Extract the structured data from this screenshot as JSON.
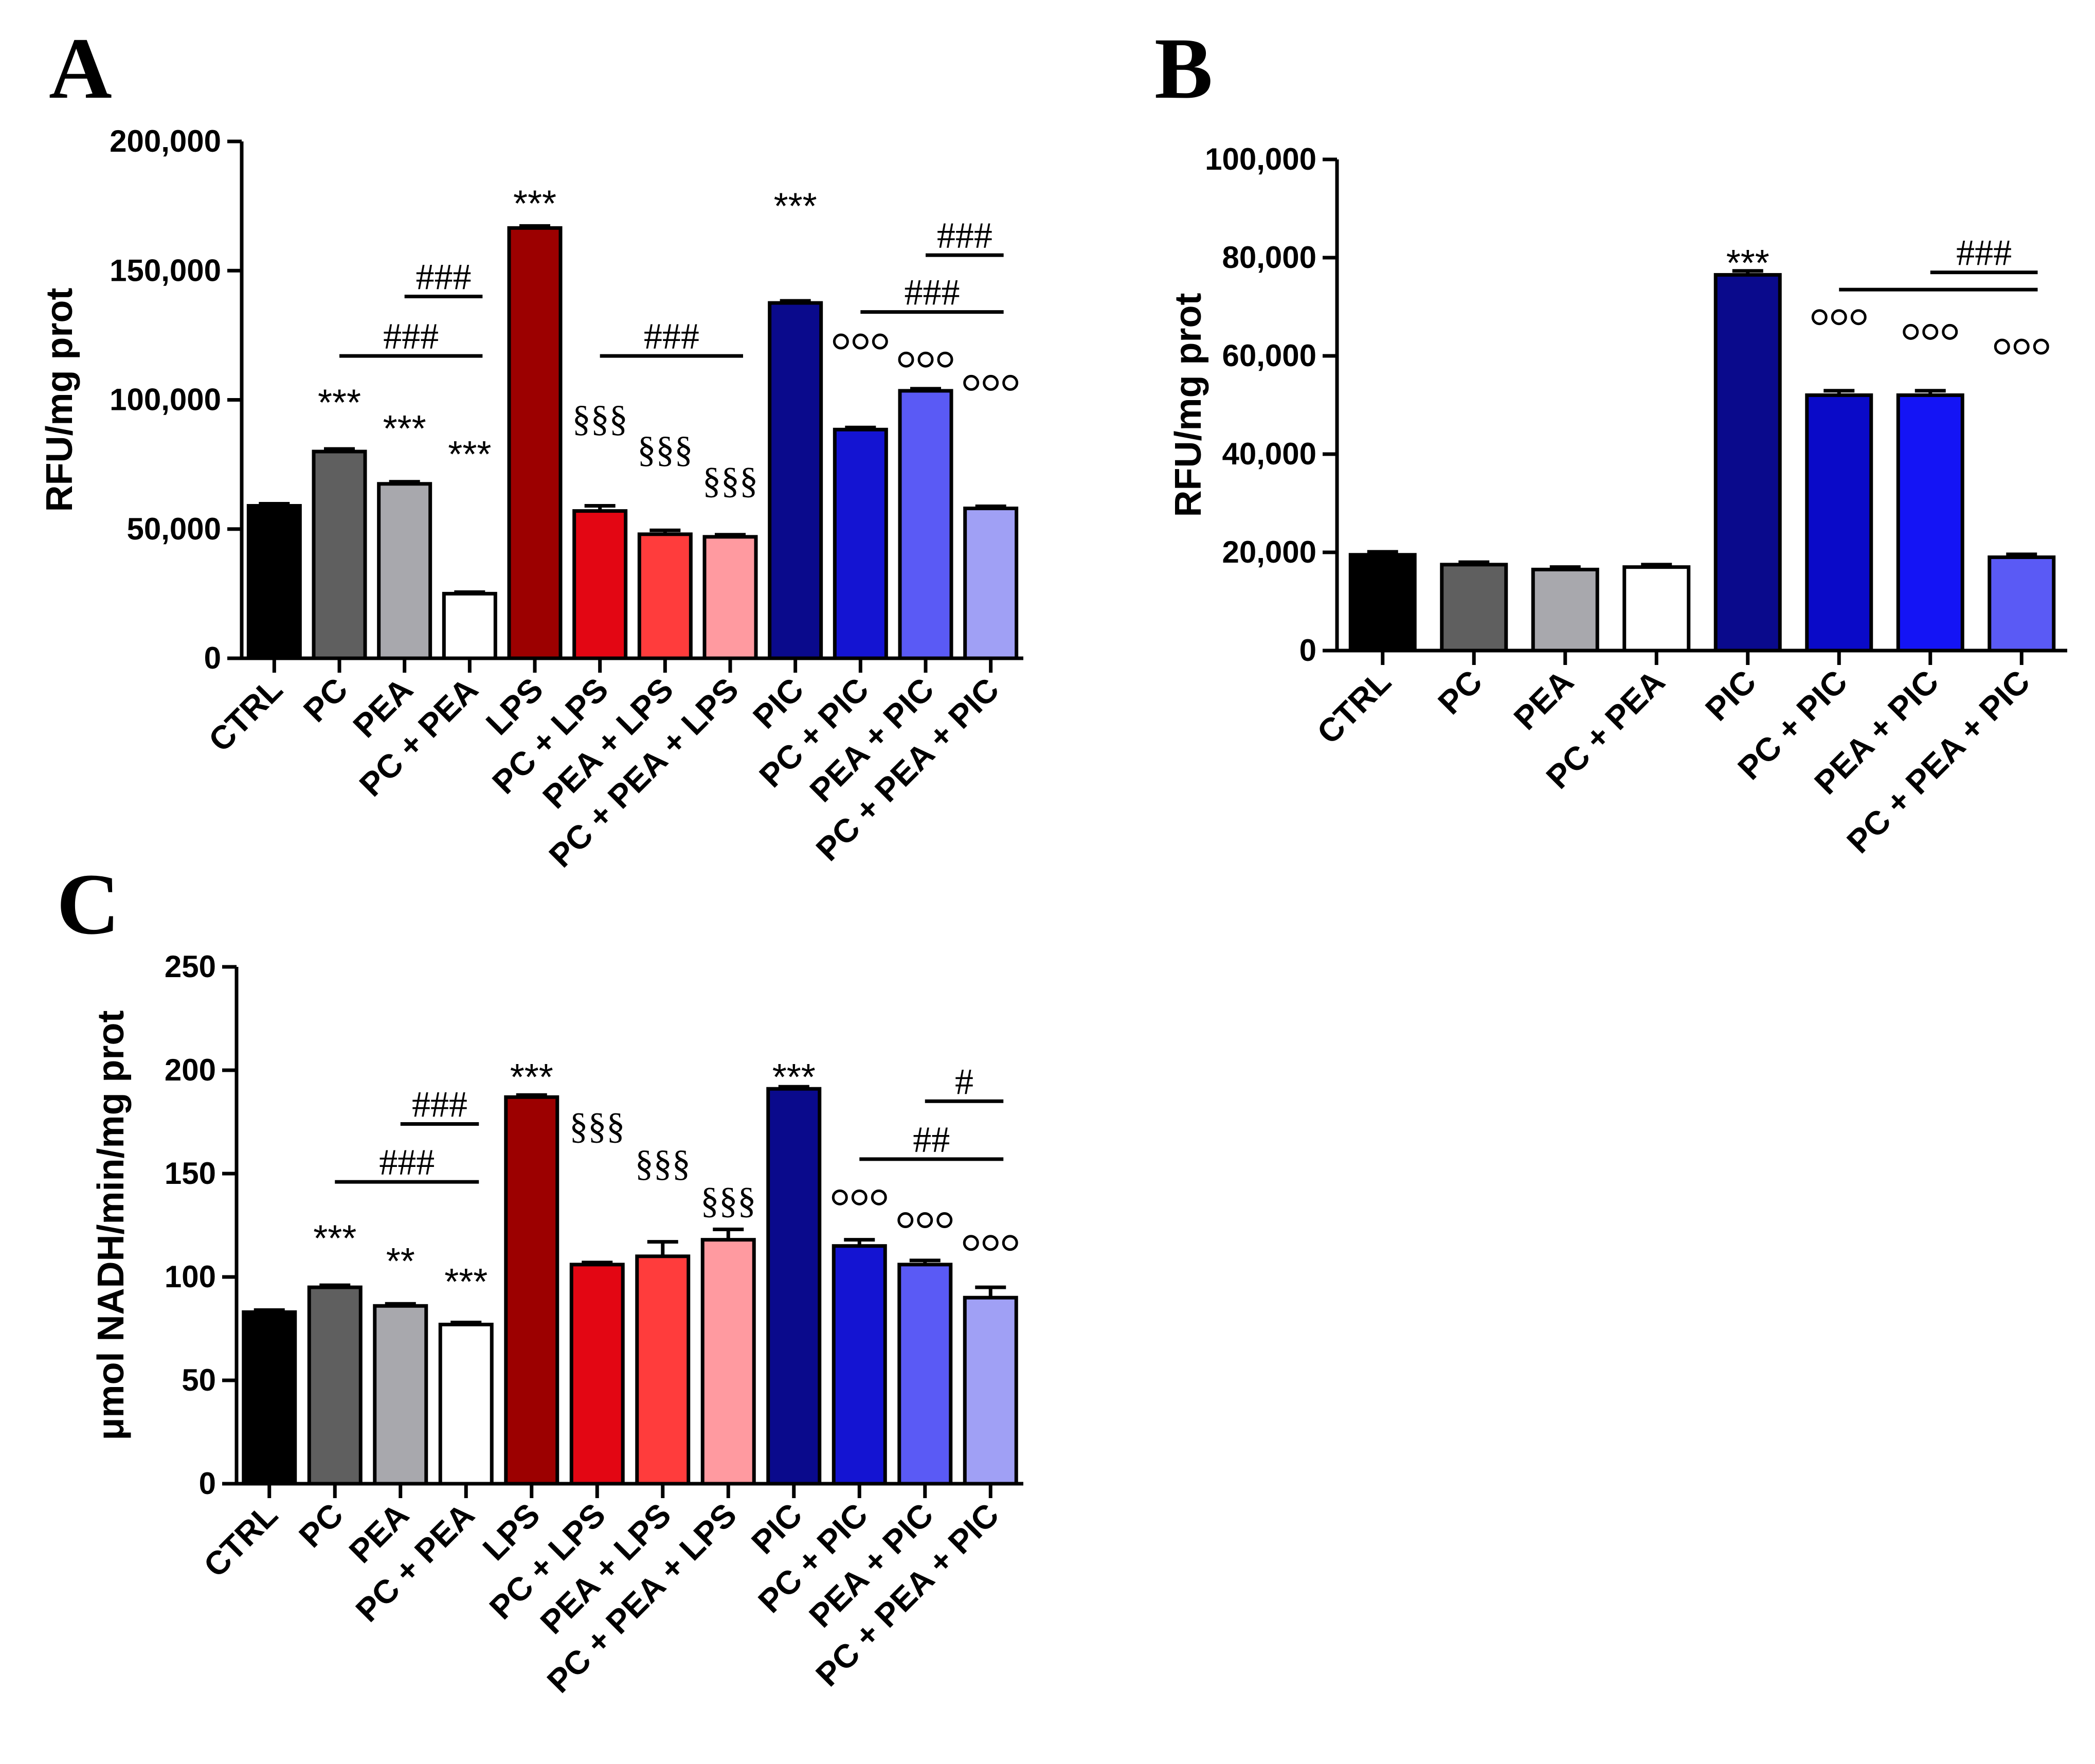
{
  "colors": {
    "CTRL": "#000000",
    "PC": "#5f5f5f",
    "PEA": "#a8a8ad",
    "PC + PEA": "#ffffff",
    "LPS": "#9c0000",
    "PC + LPS": "#e30613",
    "PEA + LPS": "#ff3c3c",
    "PC + PEA + LPS": "#ff9aa0",
    "PIC": "#0a0a8c",
    "PC + PIC": "#1414d2",
    "PEA + PIC": "#5a5af5",
    "PC + PEA + PIC": "#a0a0f5",
    "B_PC + PIC": "#0a0ac8",
    "B_PEA + PIC": "#1414f5",
    "B_PC + PEA + PIC": "#5a5af5"
  },
  "chart_data": [
    {
      "panel": "A",
      "type": "bar",
      "ylabel": "RFU/mg prot",
      "ylim": [
        0,
        200000
      ],
      "yticks": [
        "0",
        "50,000",
        "100,000",
        "150,000",
        "200,000"
      ],
      "categories": [
        "CTRL",
        "PC",
        "PEA",
        "PC + PEA",
        "LPS",
        "PC + LPS",
        "PEA + LPS",
        "PC + PEA + LPS",
        "PIC",
        "PC + PIC",
        "PEA + PIC",
        "PC + PEA + PIC"
      ],
      "values": [
        59000,
        80000,
        67500,
        25000,
        166500,
        57000,
        48000,
        47000,
        137500,
        88500,
        103500,
        58000
      ],
      "errors": [
        800,
        1000,
        800,
        600,
        800,
        2000,
        1500,
        800,
        800,
        800,
        800,
        800
      ],
      "annotations": [
        {
          "text": "***",
          "category": "PC",
          "value": 100000,
          "font": "sans"
        },
        {
          "text": "***",
          "category": "PEA",
          "value": 90000,
          "font": "sans"
        },
        {
          "text": "***",
          "category": "PC + PEA",
          "value": 80000,
          "font": "sans"
        },
        {
          "text": "***",
          "category": "LPS",
          "value": 177000,
          "font": "sans"
        },
        {
          "text": "§§§",
          "category": "PC + LPS",
          "value": 88000,
          "font": "serif"
        },
        {
          "text": "§§§",
          "category": "PEA + LPS",
          "value": 76000,
          "font": "serif"
        },
        {
          "text": "§§§",
          "category": "PC + PEA + LPS",
          "value": 64000,
          "font": "serif"
        },
        {
          "text": "***",
          "category": "PIC",
          "value": 176000,
          "font": "sans"
        },
        {
          "text": "ooo",
          "category": "PC + PIC",
          "value": 119000,
          "font": "circles"
        },
        {
          "text": "ooo",
          "category": "PEA + PIC",
          "value": 112000,
          "font": "circles"
        },
        {
          "text": "ooo",
          "category": "PC + PEA + PIC",
          "value": 103000,
          "font": "circles"
        }
      ],
      "brackets": [
        {
          "text": "###",
          "from": "PC",
          "to": "PC + PEA",
          "value": 117000
        },
        {
          "text": "###",
          "from": "PEA",
          "to": "PC + PEA",
          "value": 140000
        },
        {
          "text": "###",
          "from": "PC + LPS",
          "to": "PC + PEA + LPS",
          "value": 117000
        },
        {
          "text": "###",
          "from": "PC + PIC",
          "to": "PC + PEA + PIC",
          "value": 134000
        },
        {
          "text": "###",
          "from": "PEA + PIC",
          "to": "PC + PEA + PIC",
          "value": 156000
        }
      ]
    },
    {
      "panel": "B",
      "type": "bar",
      "ylabel": "RFU/mg prot",
      "ylim": [
        0,
        100000
      ],
      "yticks": [
        "0",
        "20,000",
        "40,000",
        "60,000",
        "80,000",
        "100,000"
      ],
      "categories": [
        "CTRL",
        "PC",
        "PEA",
        "PC + PEA",
        "PIC",
        "PC + PIC",
        "PEA + PIC",
        "PC + PEA + PIC"
      ],
      "values": [
        19500,
        17500,
        16500,
        17000,
        76500,
        52000,
        52000,
        19000
      ],
      "errors": [
        600,
        500,
        500,
        500,
        800,
        900,
        900,
        600
      ],
      "annotations": [
        {
          "text": "***",
          "category": "PIC",
          "value": 79500,
          "font": "sans"
        },
        {
          "text": "ooo",
          "category": "PC + PIC",
          "value": 66000,
          "font": "circles"
        },
        {
          "text": "ooo",
          "category": "PEA + PIC",
          "value": 63000,
          "font": "circles"
        },
        {
          "text": "ooo",
          "category": "PC + PEA + PIC",
          "value": 60000,
          "font": "circles"
        }
      ],
      "brackets": [
        {
          "text": "",
          "from": "PC + PIC",
          "to": "PC + PEA + PIC",
          "value": 73500
        },
        {
          "text": "###",
          "from": "PEA + PIC",
          "to": "PC + PEA + PIC",
          "value": 77000
        }
      ]
    },
    {
      "panel": "C",
      "type": "bar",
      "ylabel": "μmol NADH/min/mg prot",
      "ylim": [
        0,
        250
      ],
      "yticks": [
        "0",
        "50",
        "100",
        "150",
        "200",
        "250"
      ],
      "categories": [
        "CTRL",
        "PC",
        "PEA",
        "PC + PEA",
        "LPS",
        "PC + LPS",
        "PEA + LPS",
        "PC + PEA + LPS",
        "PIC",
        "PC + PIC",
        "PEA + PIC",
        "PC + PEA + PIC"
      ],
      "values": [
        83,
        95,
        86,
        77,
        187,
        106,
        110,
        118,
        191,
        115,
        106,
        90
      ],
      "errors": [
        1,
        1,
        1,
        1,
        1,
        1,
        7,
        5,
        1,
        3,
        2,
        5
      ],
      "annotations": [
        {
          "text": "***",
          "category": "PC",
          "value": 120,
          "font": "sans"
        },
        {
          "text": "**",
          "category": "PEA",
          "value": 109,
          "font": "sans"
        },
        {
          "text": "***",
          "category": "PC + PEA",
          "value": 99,
          "font": "sans"
        },
        {
          "text": "***",
          "category": "LPS",
          "value": 198,
          "font": "sans"
        },
        {
          "text": "§§§",
          "category": "PC + LPS",
          "value": 167,
          "font": "serif"
        },
        {
          "text": "§§§",
          "category": "PEA + LPS",
          "value": 149,
          "font": "serif"
        },
        {
          "text": "§§§",
          "category": "PC + PEA + LPS",
          "value": 131,
          "font": "serif"
        },
        {
          "text": "***",
          "category": "PIC",
          "value": 198,
          "font": "sans"
        },
        {
          "text": "ooo",
          "category": "PC + PIC",
          "value": 134,
          "font": "circles"
        },
        {
          "text": "ooo",
          "category": "PEA + PIC",
          "value": 123,
          "font": "circles"
        },
        {
          "text": "ooo",
          "category": "PC + PEA + PIC",
          "value": 112,
          "font": "circles"
        }
      ],
      "brackets": [
        {
          "text": "###",
          "from": "PC",
          "to": "PC + PEA",
          "value": 146
        },
        {
          "text": "###",
          "from": "PEA",
          "to": "PC + PEA",
          "value": 174
        },
        {
          "text": "##",
          "from": "PC + PIC",
          "to": "PC + PEA + PIC",
          "value": 157
        },
        {
          "text": "#",
          "from": "PEA + PIC",
          "to": "PC + PEA + PIC",
          "value": 185
        }
      ]
    }
  ]
}
